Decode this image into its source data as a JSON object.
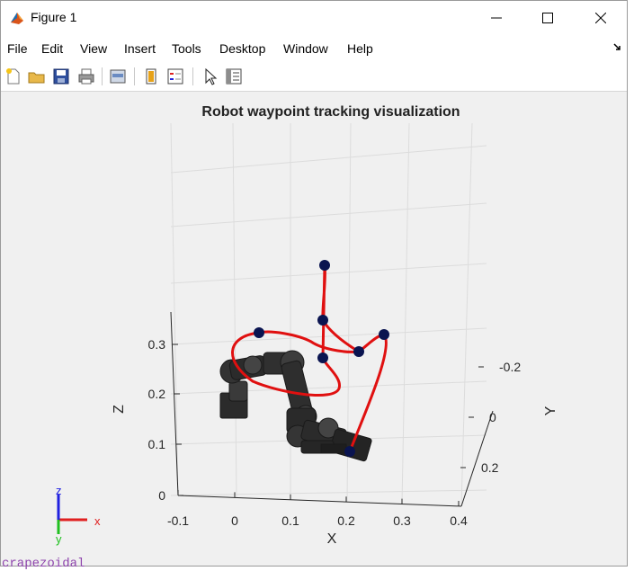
{
  "window": {
    "title": "Figure 1",
    "controls": {
      "minimize": "—",
      "maximize": "☐",
      "close": "✕"
    }
  },
  "menu": [
    "File",
    "Edit",
    "View",
    "Insert",
    "Tools",
    "Desktop",
    "Window",
    "Help"
  ],
  "menu_dock_icon": "dock-arrow-icon",
  "toolbar": [
    "new-figure-icon",
    "open-file-icon",
    "save-icon",
    "print-icon",
    "link-plot-icon",
    "colorbar-icon",
    "legend-icon",
    "select-pointer-icon",
    "property-inspector-icon"
  ],
  "background_text": "crapezoidal",
  "chart_data": {
    "type": "line3d",
    "title": "Robot waypoint tracking visualization",
    "xlabel": "X",
    "ylabel": "Y",
    "zlabel": "Z",
    "x_ticks": [
      "-0.1",
      "0",
      "0.1",
      "0.2",
      "0.3",
      "0.4"
    ],
    "y_ticks": [
      "-0.2",
      "0",
      "0.2"
    ],
    "z_ticks": [
      "0",
      "0.1",
      "0.2",
      "0.3"
    ],
    "xlim": [
      -0.1,
      0.4
    ],
    "ylim": [
      -0.3,
      0.3
    ],
    "zlim": [
      0,
      0.6
    ],
    "grid": true,
    "triad_labels": {
      "x": "x",
      "y": "y",
      "z": "z"
    },
    "colors": {
      "trajectory": "#e01010",
      "waypoints": "#0a1450",
      "robot": "#2b2b2b",
      "triad_x": "#e02020",
      "triad_y": "#20c020",
      "triad_z": "#2020e0"
    },
    "waypoints": [
      {
        "x": 0.16,
        "y": 0.0,
        "z": 0.55
      },
      {
        "x": 0.16,
        "y": 0.0,
        "z": 0.4
      },
      {
        "x": 0.23,
        "y": 0.0,
        "z": 0.3
      },
      {
        "x": 0.27,
        "y": -0.1,
        "z": 0.38
      },
      {
        "x": 0.02,
        "y": 0.0,
        "z": 0.38
      },
      {
        "x": 0.16,
        "y": 0.05,
        "z": 0.33
      },
      {
        "x": 0.21,
        "y": 0.15,
        "z": 0.1
      }
    ]
  }
}
